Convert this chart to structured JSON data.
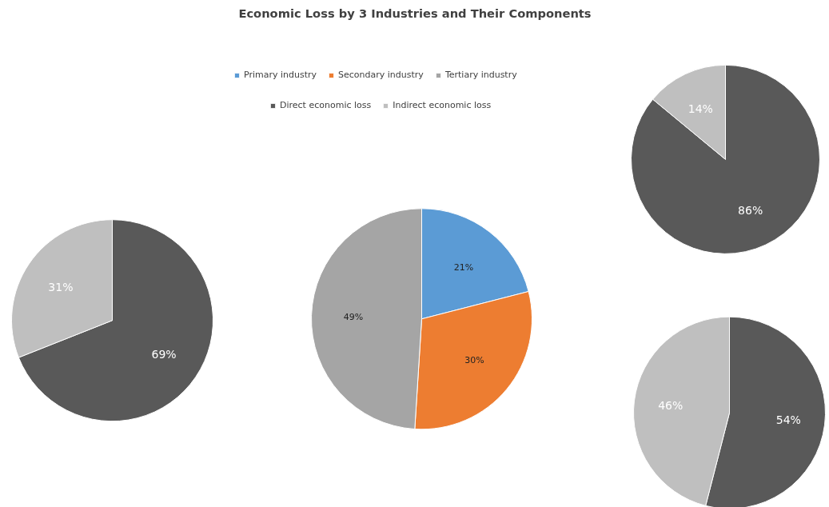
{
  "chart_data": [
    {
      "type": "pie",
      "title": "Economic Loss by 3 Industries and Their Components",
      "categories": [
        "Primary industry",
        "Secondary industry",
        "Tertiary industry"
      ],
      "values": [
        21,
        30,
        49
      ],
      "value_labels": [
        "21%",
        "30%",
        "49%"
      ],
      "colors": [
        "#5b9bd5",
        "#ed7d31",
        "#a5a5a5"
      ],
      "legend": "top"
    },
    {
      "type": "pie",
      "categories": [
        "Direct economic loss",
        "Indirect economic loss"
      ],
      "values": [
        69,
        31
      ],
      "value_labels": [
        "69%",
        "31%"
      ],
      "colors": [
        "#595959",
        "#bfbfbf"
      ],
      "legend": "top"
    },
    {
      "type": "pie",
      "categories": [
        null,
        null
      ],
      "values": [
        86,
        14
      ],
      "value_labels": [
        "86%",
        "14%"
      ],
      "colors": [
        "#595959",
        "#bfbfbf"
      ]
    },
    {
      "type": "pie",
      "categories": [
        null,
        null
      ],
      "values": [
        54,
        46
      ],
      "value_labels": [
        "54%",
        "46%"
      ],
      "colors": [
        "#595959",
        "#bfbfbf"
      ]
    }
  ]
}
